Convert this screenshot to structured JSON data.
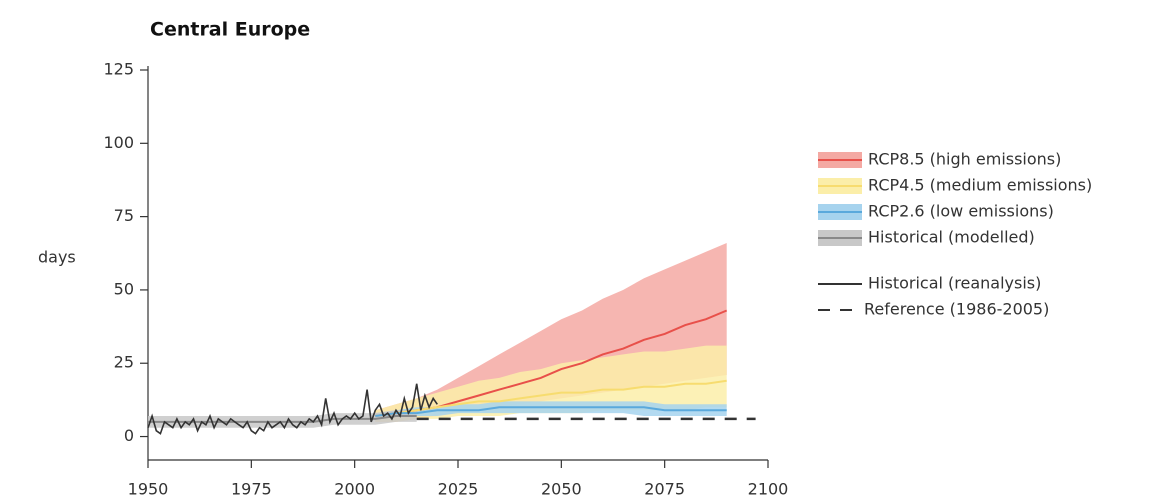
{
  "chart_data": {
    "type": "line",
    "title": "Central Europe",
    "y_label": "days",
    "xlim": [
      1950,
      2100
    ],
    "ylim": [
      -8,
      125
    ],
    "xticks": [
      1950,
      1975,
      2000,
      2025,
      2050,
      2075,
      2100
    ],
    "yticks": [
      0,
      25,
      50,
      75,
      100,
      125
    ],
    "grid": false,
    "legend": "right",
    "series": [
      {
        "name": "RCP8.5 (high emissions)",
        "color": "#e8504a",
        "band_color": "#f4a9a3",
        "x": [
          2005,
          2010,
          2015,
          2020,
          2025,
          2030,
          2035,
          2040,
          2045,
          2050,
          2055,
          2060,
          2065,
          2070,
          2075,
          2080,
          2085,
          2090
        ],
        "values": [
          7,
          8,
          9,
          10,
          12,
          14,
          16,
          18,
          20,
          23,
          25,
          28,
          30,
          33,
          35,
          38,
          40,
          43
        ],
        "lower": [
          5,
          5,
          6,
          7,
          8,
          9,
          10,
          11,
          12,
          13,
          14,
          15,
          16,
          17,
          18,
          19,
          20,
          21
        ],
        "upper": [
          9,
          11,
          13,
          16,
          20,
          24,
          28,
          32,
          36,
          40,
          43,
          47,
          50,
          54,
          57,
          60,
          63,
          66
        ]
      },
      {
        "name": "RCP4.5 (medium emissions)",
        "color": "#f7dc6f",
        "band_color": "#fbeea9",
        "x": [
          2005,
          2010,
          2015,
          2020,
          2025,
          2030,
          2035,
          2040,
          2045,
          2050,
          2055,
          2060,
          2065,
          2070,
          2075,
          2080,
          2085,
          2090
        ],
        "values": [
          7,
          8,
          9,
          10,
          11,
          12,
          12,
          13,
          14,
          15,
          15,
          16,
          16,
          17,
          17,
          18,
          18,
          19
        ],
        "lower": [
          5,
          5,
          6,
          6,
          7,
          7,
          7,
          8,
          8,
          8,
          8,
          9,
          9,
          9,
          9,
          9,
          10,
          10
        ],
        "upper": [
          9,
          11,
          13,
          15,
          17,
          19,
          20,
          22,
          23,
          25,
          26,
          27,
          28,
          29,
          29,
          30,
          31,
          31
        ]
      },
      {
        "name": "RCP2.6 (low emissions)",
        "color": "#5aa9dc",
        "band_color": "#a6d3ee",
        "x": [
          2005,
          2010,
          2015,
          2020,
          2025,
          2030,
          2035,
          2040,
          2045,
          2050,
          2055,
          2060,
          2065,
          2070,
          2075,
          2080,
          2085,
          2090
        ],
        "values": [
          7,
          8,
          8,
          9,
          9,
          9,
          10,
          10,
          10,
          10,
          10,
          10,
          10,
          10,
          9,
          9,
          9,
          9
        ],
        "lower": [
          6,
          7,
          7,
          7,
          8,
          8,
          8,
          8,
          8,
          8,
          8,
          8,
          8,
          7,
          7,
          7,
          7,
          7
        ],
        "upper": [
          8,
          9,
          10,
          10,
          11,
          11,
          12,
          12,
          12,
          12,
          12,
          12,
          12,
          12,
          11,
          11,
          11,
          11
        ]
      },
      {
        "name": "Historical (modelled)",
        "color": "#888888",
        "band_color": "#c8c8c8",
        "x": [
          1950,
          1955,
          1960,
          1965,
          1970,
          1975,
          1980,
          1985,
          1990,
          1995,
          2000,
          2005,
          2010,
          2015
        ],
        "values": [
          5,
          5,
          5,
          5,
          5,
          5,
          5,
          5,
          5,
          6,
          6,
          6,
          7,
          7
        ],
        "lower": [
          3,
          3,
          3,
          3,
          3,
          3,
          3,
          3,
          3,
          4,
          4,
          4,
          5,
          5
        ],
        "upper": [
          7,
          7,
          7,
          7,
          7,
          7,
          7,
          7,
          7,
          8,
          8,
          8,
          9,
          9
        ]
      },
      {
        "name": "Historical (reanalysis)",
        "color": "#333333",
        "x": [
          1950,
          1951,
          1952,
          1953,
          1954,
          1955,
          1956,
          1957,
          1958,
          1959,
          1960,
          1961,
          1962,
          1963,
          1964,
          1965,
          1966,
          1967,
          1968,
          1969,
          1970,
          1971,
          1972,
          1973,
          1974,
          1975,
          1976,
          1977,
          1978,
          1979,
          1980,
          1981,
          1982,
          1983,
          1984,
          1985,
          1986,
          1987,
          1988,
          1989,
          1990,
          1991,
          1992,
          1993,
          1994,
          1995,
          1996,
          1997,
          1998,
          1999,
          2000,
          2001,
          2002,
          2003,
          2004,
          2005,
          2006,
          2007,
          2008,
          2009,
          2010,
          2011,
          2012,
          2013,
          2014,
          2015,
          2016,
          2017,
          2018,
          2019,
          2020
        ],
        "values": [
          3,
          7,
          2,
          1,
          5,
          4,
          3,
          6,
          3,
          5,
          4,
          6,
          2,
          5,
          4,
          7,
          3,
          6,
          5,
          4,
          6,
          5,
          4,
          3,
          5,
          2,
          1,
          3,
          2,
          5,
          3,
          4,
          5,
          3,
          6,
          4,
          3,
          5,
          4,
          6,
          5,
          7,
          4,
          13,
          5,
          8,
          4,
          6,
          7,
          6,
          8,
          6,
          7,
          16,
          5,
          9,
          11,
          7,
          8,
          6,
          9,
          7,
          13,
          8,
          10,
          18,
          9,
          14,
          10,
          13,
          11
        ]
      },
      {
        "name": "Reference (1986-2005)",
        "color": "#333333",
        "dashed": true,
        "x": [
          2015,
          2097
        ],
        "values": [
          6,
          6
        ]
      }
    ]
  }
}
